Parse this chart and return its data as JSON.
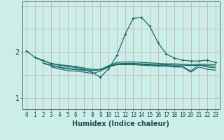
{
  "xlabel": "Humidex (Indice chaleur)",
  "bg_color": "#cceee8",
  "line_color": "#1a6b6b",
  "grid_color_v": "#c8a8a8",
  "grid_color_h": "#b8b0b0",
  "x_ticks": [
    0,
    1,
    2,
    3,
    4,
    5,
    6,
    7,
    8,
    9,
    10,
    11,
    12,
    13,
    14,
    15,
    16,
    17,
    18,
    19,
    20,
    21,
    22,
    23
  ],
  "y_ticks": [
    1,
    2
  ],
  "xlim": [
    -0.5,
    23.5
  ],
  "ylim": [
    0.75,
    3.1
  ],
  "lines": [
    {
      "x": [
        0,
        1,
        2,
        3,
        4,
        5,
        6,
        7,
        8,
        9,
        10,
        11,
        12,
        13,
        14,
        15,
        16,
        17,
        18,
        19,
        20,
        21,
        22,
        23
      ],
      "y": [
        2.02,
        1.88,
        1.82,
        1.74,
        1.71,
        1.68,
        1.66,
        1.62,
        1.55,
        1.45,
        1.63,
        1.92,
        2.38,
        2.73,
        2.75,
        2.56,
        2.2,
        1.96,
        1.86,
        1.82,
        1.8,
        1.8,
        1.82,
        1.77
      ],
      "marker": "+"
    },
    {
      "x": [
        1,
        2,
        3,
        4,
        5,
        6,
        7,
        8,
        9,
        10,
        11,
        12,
        13,
        14,
        15,
        16,
        17,
        18,
        19,
        20,
        21,
        22,
        23
      ],
      "y": [
        1.88,
        1.8,
        1.75,
        1.72,
        1.7,
        1.68,
        1.65,
        1.62,
        1.61,
        1.7,
        1.77,
        1.78,
        1.78,
        1.77,
        1.76,
        1.75,
        1.74,
        1.74,
        1.73,
        1.72,
        1.73,
        1.73,
        1.72
      ],
      "marker": null
    },
    {
      "x": [
        2,
        3,
        4,
        5,
        6,
        7,
        8,
        9,
        10,
        11,
        12,
        13,
        14,
        15,
        16,
        17,
        18,
        19,
        20,
        21,
        22,
        23
      ],
      "y": [
        1.76,
        1.71,
        1.67,
        1.64,
        1.62,
        1.61,
        1.6,
        1.62,
        1.69,
        1.74,
        1.75,
        1.75,
        1.74,
        1.73,
        1.72,
        1.72,
        1.71,
        1.71,
        1.7,
        1.71,
        1.7,
        1.69
      ],
      "marker": null
    },
    {
      "x": [
        2,
        3,
        4,
        5,
        6,
        7,
        8,
        9,
        10,
        11,
        12,
        13,
        14,
        15,
        16,
        17,
        18,
        19,
        20,
        21,
        22,
        23
      ],
      "y": [
        1.75,
        1.7,
        1.66,
        1.63,
        1.61,
        1.6,
        1.59,
        1.61,
        1.68,
        1.73,
        1.73,
        1.73,
        1.72,
        1.72,
        1.7,
        1.7,
        1.69,
        1.68,
        1.58,
        1.72,
        1.67,
        1.65
      ],
      "marker": null
    },
    {
      "x": [
        3,
        4,
        5,
        6,
        7,
        8,
        9,
        10,
        11,
        12,
        13,
        14,
        15,
        16,
        17,
        18,
        19,
        20,
        21,
        22,
        23
      ],
      "y": [
        1.67,
        1.63,
        1.59,
        1.58,
        1.56,
        1.53,
        1.58,
        1.67,
        1.72,
        1.72,
        1.72,
        1.71,
        1.7,
        1.69,
        1.69,
        1.67,
        1.67,
        1.56,
        1.67,
        1.62,
        1.6
      ],
      "marker": null
    }
  ],
  "xlabel_fontsize": 7,
  "tick_fontsize": 5.5,
  "ytick_fontsize": 7,
  "lw": 0.9
}
